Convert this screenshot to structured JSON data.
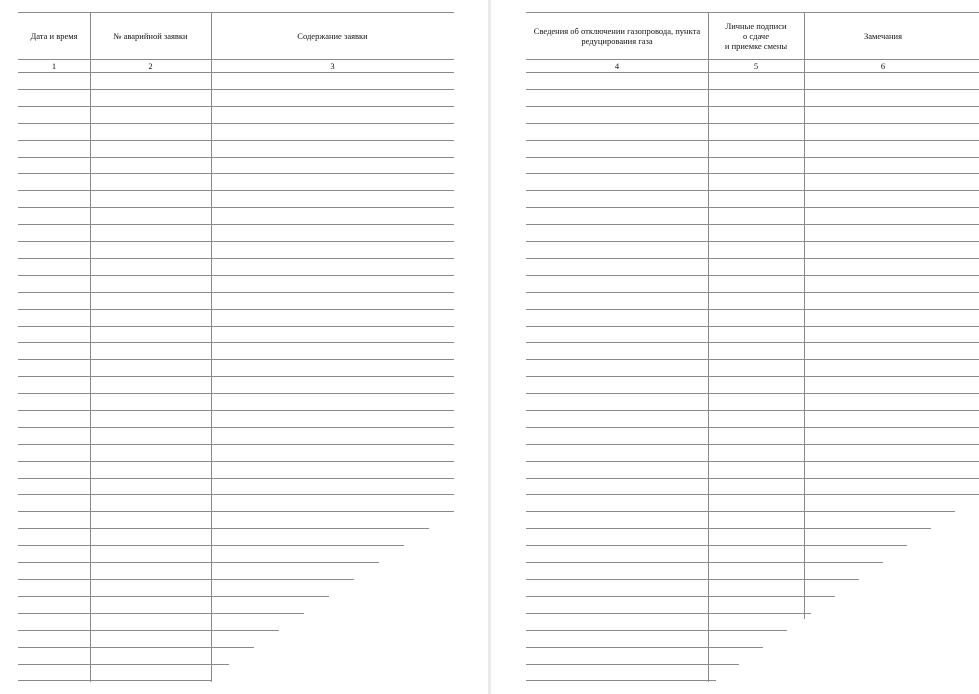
{
  "left_page": {
    "columns": [
      {
        "header": "Дата и время",
        "number": "1"
      },
      {
        "header": "№ аварийной заявки",
        "number": "2"
      },
      {
        "header": "Содержание заявки",
        "number": "3"
      }
    ]
  },
  "right_page": {
    "columns": [
      {
        "header": "Сведения об отключении газопровода, пункта редуцирования газа",
        "number": "4"
      },
      {
        "header": "Личные подписи\nо сдаче\nи приемке смены",
        "number": "5"
      },
      {
        "header": "Замечания",
        "number": "6"
      }
    ]
  },
  "blank_row_count": 36
}
